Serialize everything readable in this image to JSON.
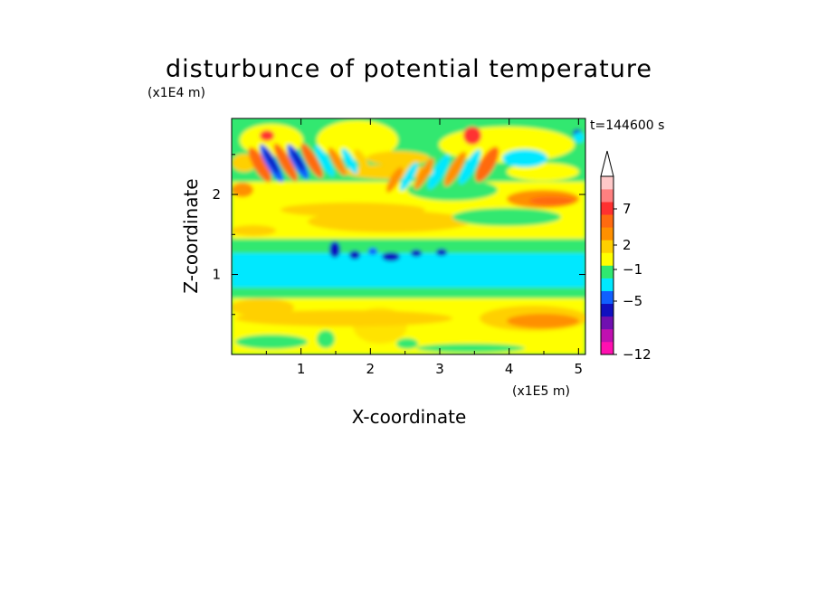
{
  "chart_data": {
    "type": "heatmap",
    "title": "disturbunce of potential temperature",
    "xlabel": "X-coordinate",
    "ylabel": "Z-coordinate",
    "x_unit": "(x1E5 m)",
    "y_unit": "(x1E4 m)",
    "time_label": "t=144600 s",
    "xlim": [
      0,
      5.1
    ],
    "ylim": [
      0,
      2.95
    ],
    "x_ticks": [
      "1",
      "2",
      "3",
      "4",
      "5"
    ],
    "y_ticks": [
      "1",
      "2"
    ],
    "colorbar": {
      "tick_labels": [
        "7",
        "2",
        "−1",
        "−5",
        "−12"
      ],
      "colors": [
        "#ff10b0",
        "#c010b0",
        "#7010b0",
        "#1010c0",
        "#1060ff",
        "#00e8ff",
        "#30e870",
        "#ffff00",
        "#ffd000",
        "#ff9000",
        "#ff6a10",
        "#ff3030",
        "#ff8080",
        "#ffc8c8"
      ]
    }
  }
}
